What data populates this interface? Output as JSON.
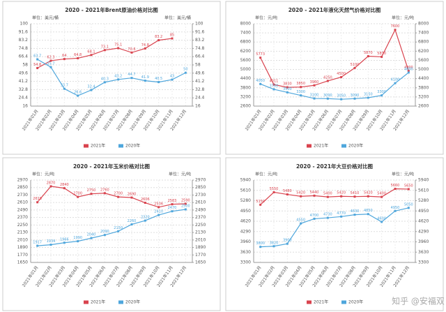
{
  "chart_data": [
    {
      "type": "line",
      "title": "2020 - 2021年Brent原油价格对比图",
      "y_label": "单位：美元/桶",
      "y2_label": "单位：美元/桶",
      "categories": [
        "2021年01月",
        "2021年02月",
        "2021年03月",
        "2021年04月",
        "2021年05月",
        "2021年06月",
        "2021年07月",
        "2021年08月",
        "2021年09月",
        "2021年10月",
        "2021年11月",
        "2021年12月"
      ],
      "series": [
        {
          "name": "2021年",
          "color": "#d9434e",
          "values": [
            54.8,
            62.3,
            64.0,
            64.8,
            68.1,
            73.1,
            75.1,
            70.6,
            74.8,
            83.2,
            85.0,
            null
          ]
        },
        {
          "name": "2020年",
          "color": "#4ea6dc",
          "values": [
            63.7,
            55.7,
            33.7,
            26.6,
            32.4,
            40.3,
            43.2,
            44.7,
            41.9,
            40.5,
            43.0,
            50.0
          ]
        }
      ],
      "ylim": [
        16,
        100
      ],
      "yticks": [
        16,
        24.4,
        32.8,
        41.2,
        49.6,
        58,
        66.4,
        74.8,
        83.2,
        91.6,
        100
      ],
      "y2lim": [
        16,
        100
      ],
      "y2ticks": [
        16,
        24.4,
        32.8,
        41.2,
        49.6,
        58,
        66.4,
        74.8,
        83.2,
        91.6,
        100
      ],
      "grid": true
    },
    {
      "type": "line",
      "title": "2020 - 2021年液化天然气价格对比图",
      "y_label": "单位：元/吨",
      "y2_label": "单位：元/吨",
      "categories": [
        "2021年01月",
        "2021年02月",
        "2021年03月",
        "2021年04月",
        "2021年05月",
        "2021年06月",
        "2021年07月",
        "2021年08月",
        "2021年09月",
        "2021年10月",
        "2021年11月",
        "2021年12月"
      ],
      "series": [
        {
          "name": "2021年",
          "color": "#d9434e",
          "values": [
            5773,
            4011,
            3830,
            3850,
            3960,
            4250,
            4500,
            5100,
            5870,
            5830,
            7600,
            4900
          ]
        },
        {
          "name": "2020年",
          "color": "#4ea6dc",
          "values": [
            4050,
            3700,
            3500,
            3300,
            3100,
            3090,
            3050,
            3090,
            3150,
            3300,
            4100,
            4800
          ]
        }
      ],
      "ylim": [
        2600,
        8000
      ],
      "yticks": [
        2600,
        3200,
        3800,
        4400,
        5000,
        5600,
        6200,
        6800,
        7400,
        8000
      ],
      "y2lim": [
        2600,
        8000
      ],
      "y2ticks": [
        2600,
        3200,
        3800,
        4400,
        5000,
        5600,
        6200,
        6800,
        7400,
        8000
      ],
      "grid": true
    },
    {
      "type": "line",
      "title": "2020 - 2021年玉米价格对比图",
      "y_label": "单位：元/吨",
      "y2_label": "单位：元/吨",
      "categories": [
        "2021年01月",
        "2021年02月",
        "2021年03月",
        "2021年04月",
        "2021年05月",
        "2021年06月",
        "2021年07月",
        "2021年08月",
        "2021年09月",
        "2021年10月",
        "2021年11月",
        "2021年12月"
      ],
      "series": [
        {
          "name": "2021年",
          "color": "#d9434e",
          "values": [
            2615,
            2870,
            2840,
            2700,
            2750,
            2760,
            2700,
            2690,
            2606,
            2536,
            2583,
            2590
          ]
        },
        {
          "name": "2020年",
          "color": "#4ea6dc",
          "values": [
            1917,
            1934,
            1966,
            1990,
            2040,
            2090,
            2150,
            2260,
            2320,
            2410,
            2470,
            2500
          ]
        }
      ],
      "ylim": [
        1650,
        2970
      ],
      "yticks": [
        1650,
        1770,
        1890,
        2010,
        2130,
        2250,
        2370,
        2490,
        2610,
        2730,
        2850,
        2970
      ],
      "y2lim": [
        1650,
        2970
      ],
      "y2ticks": [
        1650,
        1770,
        1890,
        2010,
        2130,
        2250,
        2370,
        2490,
        2610,
        2730,
        2850,
        2970
      ],
      "grid": true
    },
    {
      "type": "line",
      "title": "2020 - 2021年大豆价格对比图",
      "y_label": "单位：元/吨",
      "y2_label": "单位：元/吨",
      "categories": [
        "2021年01月",
        "2021年02月",
        "2021年03月",
        "2021年04月",
        "2021年05月",
        "2021年06月",
        "2021年07月",
        "2021年08月",
        "2021年09月",
        "2021年10月",
        "2021年11月",
        "2021年12月"
      ],
      "series": [
        {
          "name": "2021年",
          "color": "#d9434e",
          "values": [
            5150,
            5550,
            5480,
            5420,
            5440,
            5400,
            5420,
            5410,
            5420,
            5400,
            5660,
            5650
          ]
        },
        {
          "name": "2020年",
          "color": "#4ea6dc",
          "values": [
            3800,
            3820,
            3900,
            4550,
            4700,
            4730,
            4770,
            4830,
            4850,
            4600,
            4950,
            5050
          ]
        }
      ],
      "ylim": [
        3300,
        5940
      ],
      "yticks": [
        3300,
        3630,
        3960,
        4290,
        4620,
        4950,
        5280,
        5610,
        5940
      ],
      "y2lim": [
        3300,
        5940
      ],
      "y2ticks": [
        3300,
        3630,
        3960,
        4290,
        4620,
        4950,
        5280,
        5610,
        5940
      ],
      "grid": true
    }
  ],
  "watermark": "知乎 @安福双"
}
